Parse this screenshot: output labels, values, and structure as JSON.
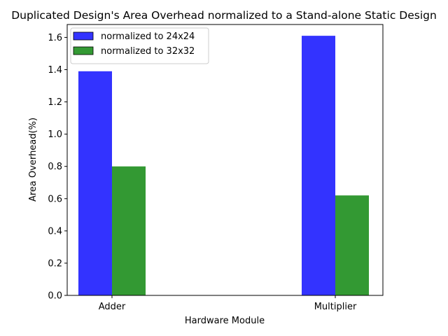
{
  "chart_data": {
    "type": "bar",
    "title": "Duplicated Design's Area Overhead normalized to a Stand-alone Static Design",
    "xlabel": "Hardware Module",
    "ylabel": "Area Overhead(%)",
    "categories": [
      "Adder",
      "Multiplier"
    ],
    "series": [
      {
        "name": "normalized to 24x24",
        "values": [
          1.39,
          1.61
        ],
        "color": "#3333ff"
      },
      {
        "name": "normalized to 32x32",
        "values": [
          0.8,
          0.62
        ],
        "color": "#339933"
      }
    ],
    "ylim": [
      0,
      1.68
    ],
    "yticks": [
      "0.0",
      "0.2",
      "0.4",
      "0.6",
      "0.8",
      "1.0",
      "1.2",
      "1.4",
      "1.6"
    ],
    "grid": false,
    "legend_position": "top-left"
  }
}
